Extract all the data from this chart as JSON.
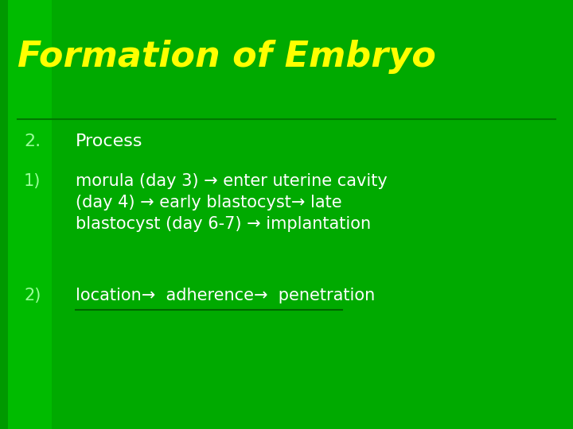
{
  "title": "Formation of Embryo",
  "title_color": "#FFFF00",
  "title_fontsize": 32,
  "background_color": "#00AA00",
  "left_strip_color": "#00CC00",
  "left_strip2_color": "#009900",
  "text_color": "#FFFFFF",
  "label_color": "#99FF99",
  "line_color": "#007700",
  "underline_color": "#006600",
  "item_number": "2.",
  "item_label": "Process",
  "sub_items": [
    {
      "num": "1)",
      "text": "morula (day 3) → enter uterine cavity\n(day 4) → early blastocyst→ late\nblastocyst (day 6-7) → implantation"
    },
    {
      "num": "2)",
      "text": "location→  adherence→  penetration"
    }
  ],
  "figsize": [
    7.2,
    5.4
  ],
  "dpi": 100
}
